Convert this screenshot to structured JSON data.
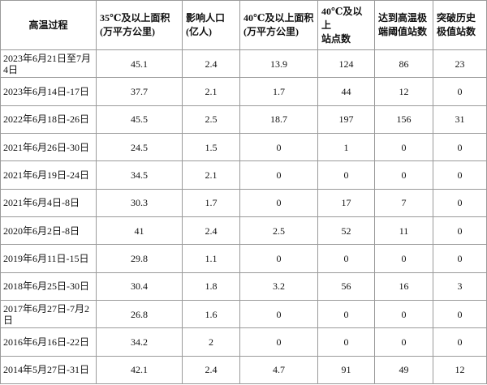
{
  "table": {
    "header": [
      [
        "高温过程"
      ],
      [
        "35℃及以上面积",
        "(万平方公里)"
      ],
      [
        "影响人口",
        "(亿人)"
      ],
      [
        "40℃及以上面积",
        "(万平方公里)"
      ],
      [
        "40℃及以上",
        "站点数"
      ],
      [
        "达到高温极",
        "端阈值站数"
      ],
      [
        "突破历史",
        "极值站数"
      ]
    ],
    "rows": [
      [
        "2023年6月21日至7月4日",
        "45.1",
        "2.4",
        "13.9",
        "124",
        "86",
        "23"
      ],
      [
        "2023年6月14日-17日",
        "37.7",
        "2.1",
        "1.7",
        "44",
        "12",
        "0"
      ],
      [
        "2022年6月18日-26日",
        "45.5",
        "2.5",
        "18.7",
        "197",
        "156",
        "31"
      ],
      [
        "2021年6月26日-30日",
        "24.5",
        "1.5",
        "0",
        "1",
        "0",
        "0"
      ],
      [
        "2021年6月19日-24日",
        "34.5",
        "2.1",
        "0",
        "0",
        "0",
        "0"
      ],
      [
        "2021年6月4日-8日",
        "30.3",
        "1.7",
        "0",
        "17",
        "7",
        "0"
      ],
      [
        "2020年6月2日-8日",
        "41",
        "2.4",
        "2.5",
        "52",
        "11",
        "0"
      ],
      [
        "2019年6月11日-15日",
        "29.8",
        "1.1",
        "0",
        "0",
        "0",
        "0"
      ],
      [
        "2018年6月25日-30日",
        "30.4",
        "1.8",
        "3.2",
        "56",
        "16",
        "3"
      ],
      [
        "2017年6月27日-7月2日",
        "26.8",
        "1.6",
        "0",
        "0",
        "0",
        "0"
      ],
      [
        "2016年6月16日-22日",
        "34.2",
        "2",
        "0",
        "0",
        "0",
        "0"
      ],
      [
        "2014年5月27日-31日",
        "42.1",
        "2.4",
        "4.7",
        "91",
        "49",
        "12"
      ]
    ]
  }
}
